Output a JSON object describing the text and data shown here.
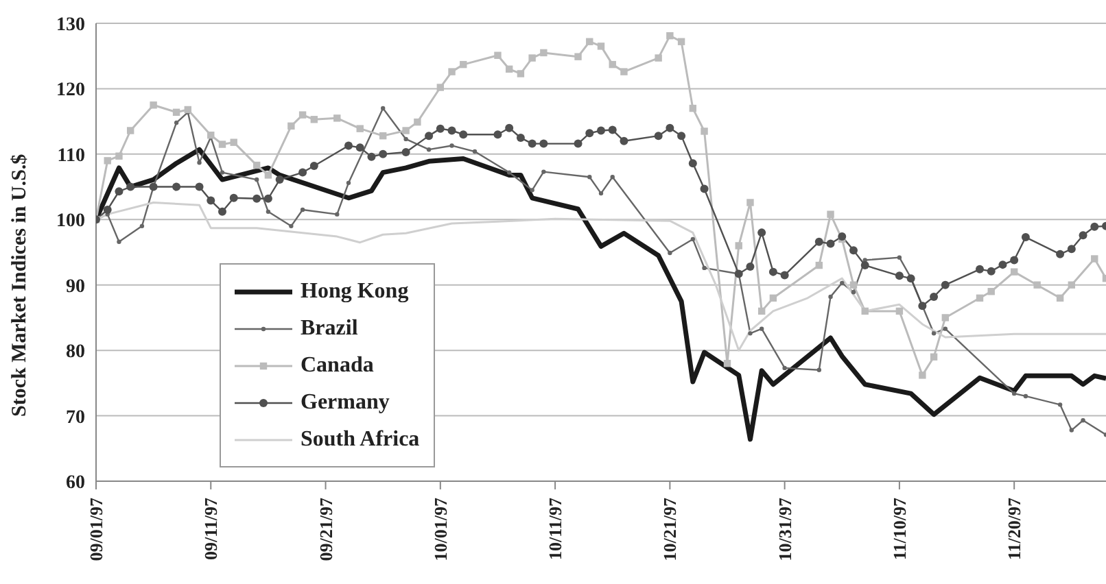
{
  "chart_data": {
    "type": "line",
    "ylabel": "Stock Market Indices in U.S.$",
    "ylim": [
      60,
      130
    ],
    "yticks": [
      60,
      70,
      80,
      90,
      100,
      110,
      120,
      130
    ],
    "xlim": [
      "1997-09-01",
      "1997-11-28"
    ],
    "xticks": [
      {
        "value": "1997-09-01",
        "label": "09/01/97"
      },
      {
        "value": "1997-09-11",
        "label": "09/11/97"
      },
      {
        "value": "1997-09-21",
        "label": "09/21/97"
      },
      {
        "value": "1997-10-01",
        "label": "10/01/97"
      },
      {
        "value": "1997-10-11",
        "label": "10/11/97"
      },
      {
        "value": "1997-10-21",
        "label": "10/21/97"
      },
      {
        "value": "1997-10-31",
        "label": "10/31/97"
      },
      {
        "value": "1997-11-10",
        "label": "11/10/97"
      },
      {
        "value": "1997-11-20",
        "label": "11/20/97"
      }
    ],
    "grid": "y",
    "legend": "bottom left",
    "line_style": "solid",
    "series": [
      {
        "name": "Hong Kong",
        "color": "#1a1a1a",
        "marker": "none",
        "x": [
          "1997-09-01",
          "1997-09-03",
          "1997-09-04",
          "1997-09-06",
          "1997-09-08",
          "1997-09-10",
          "1997-09-12",
          "1997-09-16",
          "1997-09-17",
          "1997-09-23",
          "1997-09-25",
          "1997-09-26",
          "1997-09-28",
          "1997-09-30",
          "1997-10-03",
          "1997-10-07",
          "1997-10-08",
          "1997-10-09",
          "1997-10-13",
          "1997-10-15",
          "1997-10-17",
          "1997-10-20",
          "1997-10-22",
          "1997-10-23",
          "1997-10-24",
          "1997-10-27",
          "1997-10-28",
          "1997-10-29",
          "1997-10-30",
          "1997-11-04",
          "1997-11-05",
          "1997-11-07",
          "1997-11-11",
          "1997-11-13",
          "1997-11-17",
          "1997-11-20",
          "1997-11-21",
          "1997-11-25",
          "1997-11-26",
          "1997-11-27",
          "1997-11-28"
        ],
        "values": [
          100,
          107.9,
          105,
          106.1,
          108.6,
          110.7,
          106.1,
          107.9,
          106.8,
          103.3,
          104.4,
          107.2,
          107.9,
          108.9,
          109.3,
          106.8,
          106.8,
          103.3,
          101.6,
          95.9,
          97.9,
          94.5,
          87.5,
          75.2,
          79.7,
          76.2,
          66.4,
          76.9,
          74.8,
          81.9,
          79.1,
          74.8,
          73.4,
          70.2,
          75.8,
          73.8,
          76.1,
          76.1,
          74.8,
          76.1,
          75.7
        ]
      },
      {
        "name": "Brazil",
        "color": "#666666",
        "marker": "circle",
        "x": [
          "1997-09-01",
          "1997-09-02",
          "1997-09-03",
          "1997-09-05",
          "1997-09-06",
          "1997-09-08",
          "1997-09-09",
          "1997-09-10",
          "1997-09-11",
          "1997-09-12",
          "1997-09-15",
          "1997-09-16",
          "1997-09-18",
          "1997-09-19",
          "1997-09-22",
          "1997-09-23",
          "1997-09-26",
          "1997-09-28",
          "1997-09-30",
          "1997-10-02",
          "1997-10-04",
          "1997-10-07",
          "1997-10-09",
          "1997-10-10",
          "1997-10-14",
          "1997-10-15",
          "1997-10-16",
          "1997-10-21",
          "1997-10-23",
          "1997-10-24",
          "1997-10-27",
          "1997-10-28",
          "1997-10-29",
          "1997-10-31",
          "1997-11-03",
          "1997-11-04",
          "1997-11-05",
          "1997-11-06",
          "1997-11-07",
          "1997-11-10",
          "1997-11-11",
          "1997-11-12",
          "1997-11-13",
          "1997-11-14",
          "1997-11-20",
          "1997-11-21",
          "1997-11-24",
          "1997-11-25",
          "1997-11-26",
          "1997-11-28"
        ],
        "values": [
          100,
          100.8,
          96.6,
          99,
          105,
          114.8,
          116.4,
          108.7,
          112.6,
          107.2,
          106.1,
          101.2,
          99,
          101.5,
          100.8,
          105.6,
          117,
          112.3,
          110.7,
          111.3,
          110.4,
          107.2,
          104.5,
          107.3,
          106.5,
          104,
          106.5,
          94.9,
          97,
          92.6,
          91.7,
          82.6,
          83.3,
          77.3,
          77,
          88.2,
          90.3,
          88.9,
          93.8,
          94.2,
          91.1,
          86.8,
          82.6,
          83.3,
          73.4,
          73,
          71.7,
          67.8,
          69.3,
          67.1
        ]
      },
      {
        "name": "Canada",
        "color": "#bbbbbb",
        "marker": "square",
        "x": [
          "1997-09-01",
          "1997-09-02",
          "1997-09-03",
          "1997-09-04",
          "1997-09-06",
          "1997-09-08",
          "1997-09-09",
          "1997-09-11",
          "1997-09-12",
          "1997-09-13",
          "1997-09-15",
          "1997-09-16",
          "1997-09-18",
          "1997-09-19",
          "1997-09-20",
          "1997-09-22",
          "1997-09-24",
          "1997-09-26",
          "1997-09-28",
          "1997-09-29",
          "1997-10-01",
          "1997-10-02",
          "1997-10-03",
          "1997-10-06",
          "1997-10-07",
          "1997-10-08",
          "1997-10-09",
          "1997-10-10",
          "1997-10-13",
          "1997-10-14",
          "1997-10-15",
          "1997-10-16",
          "1997-10-17",
          "1997-10-20",
          "1997-10-21",
          "1997-10-22",
          "1997-10-23",
          "1997-10-24",
          "1997-10-26",
          "1997-10-27",
          "1997-10-28",
          "1997-10-29",
          "1997-10-30",
          "1997-11-03",
          "1997-11-04",
          "1997-11-05",
          "1997-11-06",
          "1997-11-07",
          "1997-11-10",
          "1997-11-12",
          "1997-11-13",
          "1997-11-14",
          "1997-11-17",
          "1997-11-18",
          "1997-11-20",
          "1997-11-22",
          "1997-11-24",
          "1997-11-25",
          "1997-11-27",
          "1997-11-28"
        ],
        "values": [
          100,
          109,
          109.7,
          113.6,
          117.5,
          116.4,
          116.8,
          112.9,
          111.5,
          111.8,
          108.3,
          106.8,
          114.3,
          116,
          115.3,
          115.5,
          113.9,
          112.8,
          113.6,
          114.9,
          120.2,
          122.6,
          123.7,
          125.1,
          123,
          122.3,
          124.7,
          125.5,
          124.9,
          127.2,
          126.5,
          123.7,
          122.6,
          124.7,
          128.1,
          127.2,
          117,
          113.5,
          78,
          96,
          102.6,
          86,
          88,
          93,
          100.8,
          97,
          90,
          86,
          86,
          76.2,
          79,
          85,
          88,
          89,
          92,
          90,
          88,
          90,
          94,
          91
        ]
      },
      {
        "name": "Germany",
        "color": "#505050",
        "marker": "circle",
        "x": [
          "1997-09-01",
          "1997-09-02",
          "1997-09-03",
          "1997-09-04",
          "1997-09-06",
          "1997-09-08",
          "1997-09-10",
          "1997-09-11",
          "1997-09-12",
          "1997-09-13",
          "1997-09-15",
          "1997-09-16",
          "1997-09-17",
          "1997-09-19",
          "1997-09-20",
          "1997-09-23",
          "1997-09-24",
          "1997-09-25",
          "1997-09-26",
          "1997-09-28",
          "1997-09-30",
          "1997-10-01",
          "1997-10-02",
          "1997-10-03",
          "1997-10-06",
          "1997-10-07",
          "1997-10-08",
          "1997-10-09",
          "1997-10-10",
          "1997-10-13",
          "1997-10-14",
          "1997-10-15",
          "1997-10-16",
          "1997-10-17",
          "1997-10-20",
          "1997-10-21",
          "1997-10-22",
          "1997-10-23",
          "1997-10-24",
          "1997-10-27",
          "1997-10-28",
          "1997-10-29",
          "1997-10-30",
          "1997-10-31",
          "1997-11-03",
          "1997-11-04",
          "1997-11-05",
          "1997-11-06",
          "1997-11-07",
          "1997-11-10",
          "1997-11-11",
          "1997-11-12",
          "1997-11-13",
          "1997-11-14",
          "1997-11-17",
          "1997-11-18",
          "1997-11-19",
          "1997-11-20",
          "1997-11-21",
          "1997-11-24",
          "1997-11-25",
          "1997-11-26",
          "1997-11-27",
          "1997-11-28"
        ],
        "values": [
          100,
          101.5,
          104.3,
          105,
          105,
          105,
          105,
          102.9,
          101.2,
          103.3,
          103.2,
          103.2,
          106.1,
          107.2,
          108.2,
          111.3,
          111,
          109.6,
          110,
          110.3,
          112.8,
          113.9,
          113.6,
          113,
          113,
          114,
          112.5,
          111.6,
          111.6,
          111.6,
          113.2,
          113.6,
          113.7,
          112,
          112.8,
          114,
          112.8,
          108.6,
          104.7,
          91.7,
          92.8,
          98,
          92,
          91.5,
          96.6,
          96.3,
          97.4,
          95.3,
          93,
          91.4,
          91,
          86.8,
          88.2,
          90,
          92.4,
          92.1,
          93.1,
          93.8,
          97.3,
          94.7,
          95.5,
          97.6,
          98.9,
          99
        ]
      },
      {
        "name": "South Africa",
        "color": "#cfcfcf",
        "marker": "none",
        "x": [
          "1997-09-01",
          "1997-09-02",
          "1997-09-06",
          "1997-09-10",
          "1997-09-11",
          "1997-09-15",
          "1997-09-22",
          "1997-09-24",
          "1997-09-26",
          "1997-09-28",
          "1997-10-02",
          "1997-10-06",
          "1997-10-11",
          "1997-10-21",
          "1997-10-23",
          "1997-10-25",
          "1997-10-27",
          "1997-10-28",
          "1997-10-30",
          "1997-11-02",
          "1997-11-05",
          "1997-11-07",
          "1997-11-10",
          "1997-11-12",
          "1997-11-14",
          "1997-11-20",
          "1997-11-28"
        ],
        "values": [
          100,
          100.8,
          102.6,
          102.2,
          98.7,
          98.7,
          97.4,
          96.5,
          97.7,
          97.9,
          99.4,
          99.7,
          100.1,
          99.8,
          98,
          90,
          80,
          83,
          86,
          88,
          91,
          86,
          87,
          84,
          82,
          82.5,
          82.5
        ]
      }
    ]
  }
}
